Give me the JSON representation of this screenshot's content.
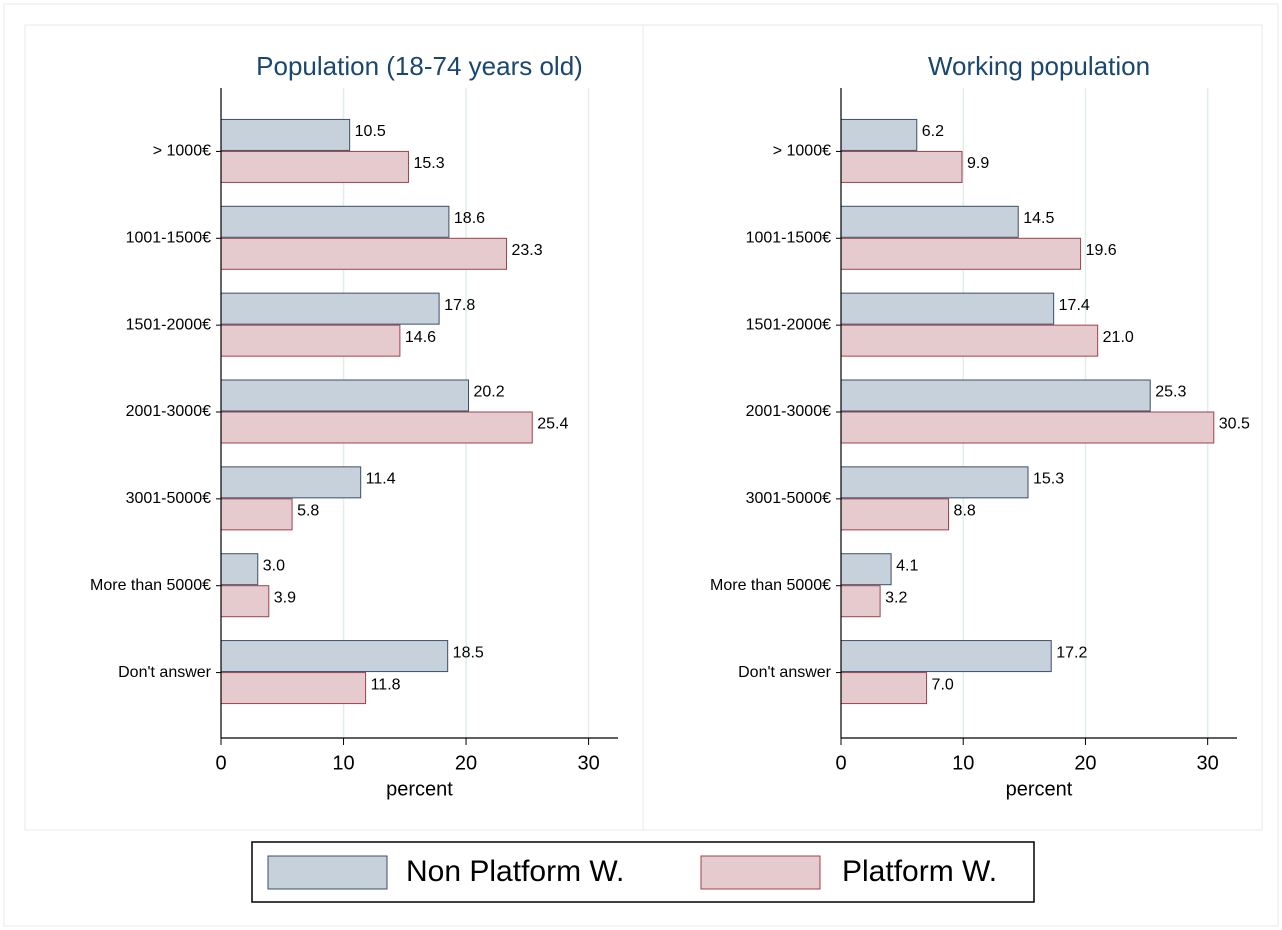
{
  "chart_data": [
    {
      "type": "bar",
      "orientation": "horizontal",
      "title": "Population (18-74 years old)",
      "xlabel": "percent",
      "categories": [
        "> 1000€",
        "1001-1500€",
        "1501-2000€",
        "2001-3000€",
        "3001-5000€",
        "More than 5000€",
        "Don't answer"
      ],
      "series": [
        {
          "name": "Non Platform W.",
          "color": "#c6d1db",
          "values": [
            10.5,
            18.6,
            17.8,
            20.2,
            11.4,
            3.0,
            18.5
          ],
          "value_labels": [
            "10.5",
            "18.6",
            "17.8",
            "20.2",
            "11.4",
            "3.0",
            "18.5"
          ]
        },
        {
          "name": "Platform W.",
          "color": "#e6cbce",
          "values": [
            15.3,
            23.3,
            14.6,
            25.4,
            5.8,
            3.9,
            11.8
          ],
          "value_labels": [
            "15.3",
            "23.3",
            "14.6",
            "25.4",
            "5.8",
            "3.9",
            "11.8"
          ]
        }
      ],
      "xlim": [
        0,
        32.4
      ],
      "xticks": [
        0,
        10,
        20,
        30
      ],
      "grid": true
    },
    {
      "type": "bar",
      "orientation": "horizontal",
      "title": "Working population",
      "xlabel": "percent",
      "categories": [
        "> 1000€",
        "1001-1500€",
        "1501-2000€",
        "2001-3000€",
        "3001-5000€",
        "More than 5000€",
        "Don't answer"
      ],
      "series": [
        {
          "color": "#c6d1db",
          "values": [
            6.2,
            14.5,
            17.4,
            25.3,
            15.3,
            4.1,
            17.2
          ],
          "value_labels": [
            "6.2",
            "14.5",
            "17.4",
            "25.3",
            "15.3",
            "4.1",
            "17.2"
          ]
        },
        {
          "color": "#e6cbce",
          "values": [
            9.9,
            19.6,
            21.0,
            30.5,
            8.8,
            3.2,
            7.0
          ],
          "value_labels": [
            "9.9",
            "19.6",
            "21.0",
            "30.5",
            "8.8",
            "3.2",
            "7.0"
          ]
        }
      ],
      "xlim": [
        0,
        32.4
      ],
      "xticks": [
        0,
        10,
        20,
        30
      ],
      "grid": true
    }
  ]
}
